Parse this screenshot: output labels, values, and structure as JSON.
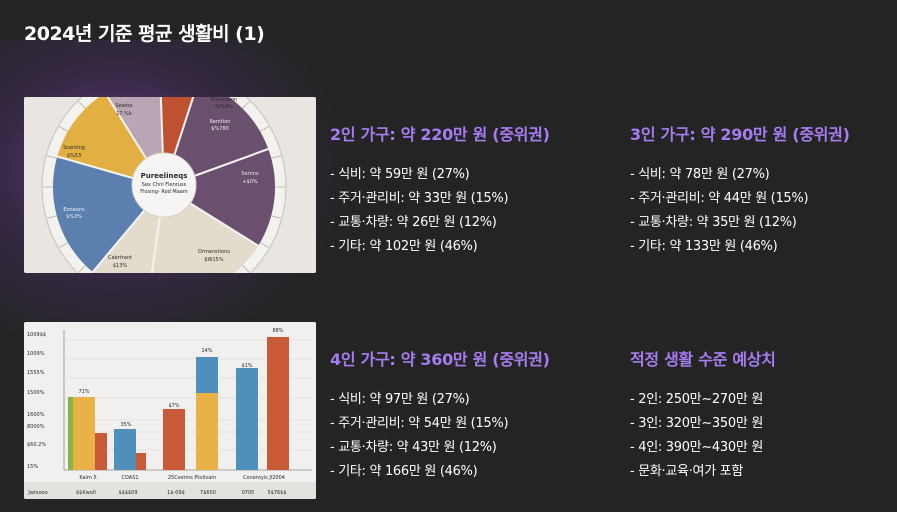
{
  "page": {
    "title": "2024년 기준 평균 생활비 (1)"
  },
  "sections": [
    {
      "heading": "2인 가구: 약 220만 원 (중위권)",
      "items": [
        "- 식비: 약 59만 원 (27%)",
        "- 주거·관리비: 약 33만 원 (15%)",
        "- 교통·차량: 약 26만 원 (12%)",
        "- 기타: 약 102만 원 (46%)"
      ]
    },
    {
      "heading": "3인 가구: 약 290만 원 (중위권)",
      "items": [
        "- 식비: 약 78만 원 (27%)",
        "- 주거·관리비: 약 44만 원 (15%)",
        "- 교통·차량: 약 35만 원 (12%)",
        "- 기타: 약 133만 원 (46%)"
      ]
    },
    {
      "heading": "4인 가구: 약 360만 원 (중위권)",
      "items": [
        "- 식비: 약 97만 원 (27%)",
        "- 주거·관리비: 약 54만 원 (15%)",
        "- 교통·차량: 약 43만 원 (12%)",
        "- 기타: 약 166만 원 (46%)"
      ]
    },
    {
      "heading": "적정 생활 수준 예상치",
      "items": [
        "- 2인: 250만~270만 원",
        "- 3인: 320만~350만 원",
        "- 4인: 390만~430만 원",
        "- 문화·교육·여가 포함"
      ]
    }
  ],
  "images": {
    "pie": {
      "center_lines": [
        "Pureelineqs",
        "Sex Chnl Flenruss",
        "Flosing- Rod Maam"
      ],
      "slice_labels": [
        [
          "Sewiss",
          "17.%k"
        ],
        [
          "Eiveenaon",
          "%%4%"
        ],
        [
          "Remtion",
          "$%780"
        ],
        [
          "Sernns",
          "+$0%"
        ],
        [
          "Drmenstions",
          "$W15%"
        ],
        [
          "Cabrtrant",
          "$13%"
        ],
        [
          "Eoneons",
          "$%3%"
        ],
        [
          "Scenting",
          "$%53"
        ]
      ],
      "colors": {
        "purple": "#6a4f6e",
        "beige": "#e3dccd",
        "blue": "#5b7fae",
        "yellow": "#e2b042",
        "lavender": "#b9a6b4",
        "orange": "#dd9a52",
        "red": "#bf5030"
      }
    },
    "bars": {
      "y_ticks": [
        "1009$$",
        "1009%",
        "1555%",
        "1500%",
        "1600%",
        "8000%",
        "$60.2%",
        "15%"
      ],
      "top_labels": [
        "71%",
        "35%",
        "$7%",
        "14%",
        "$1%",
        "88%"
      ],
      "groups": [
        "Kaim 5",
        "COAS1",
        "25Cestms Ptolivam",
        "Coneroyis Jl2004"
      ],
      "footer": [
        "Jwtsooo",
        "$$Kwo0",
        "$$$$09",
        "1$-09$",
        "7$650",
        "0705",
        "5$76$$"
      ],
      "colors": {
        "green": "#8ab24a",
        "yellow": "#e8b247",
        "red": "#c95a38",
        "blue": "#4f8fba"
      }
    }
  }
}
